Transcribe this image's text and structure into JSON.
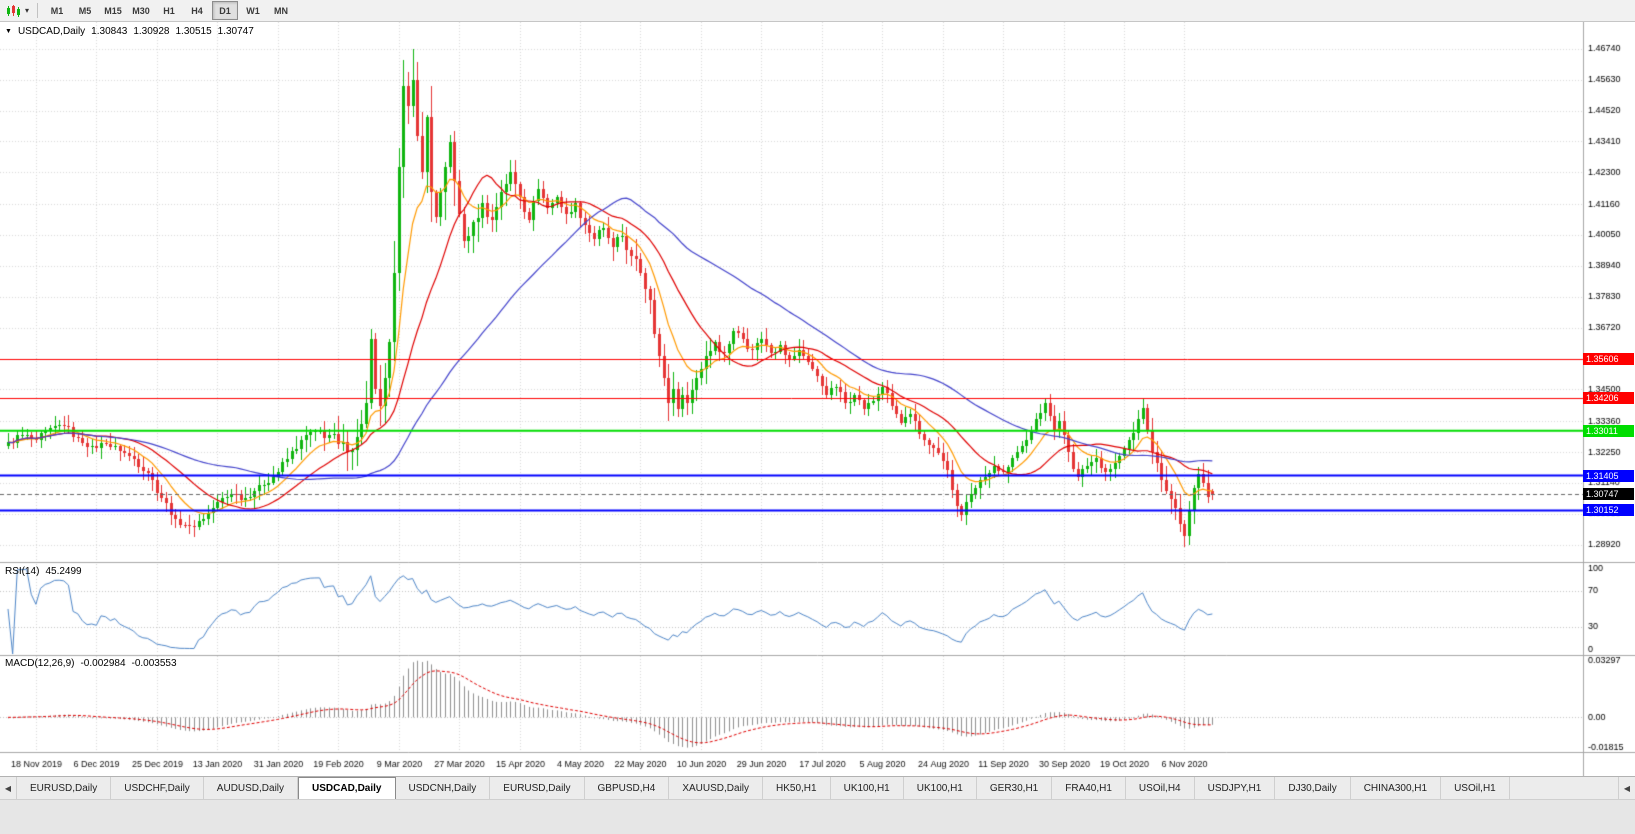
{
  "toolbar": {
    "timeframes": [
      "M1",
      "M5",
      "M15",
      "M30",
      "H1",
      "H4",
      "D1",
      "W1",
      "MN"
    ],
    "active_timeframe": "D1"
  },
  "icons": {
    "chart_type_dropdown": "▾",
    "symbol_marker": "▼",
    "tab_scroll_left": "◀",
    "tab_scroll_right": "◀"
  },
  "chart_header": {
    "symbol": "USDCAD,Daily",
    "open": "1.30843",
    "high": "1.30928",
    "low": "1.30515",
    "close": "1.30747"
  },
  "price_scale": {
    "ticks": [
      "1.46740",
      "1.45630",
      "1.44520",
      "1.43410",
      "1.42300",
      "1.41160",
      "1.40050",
      "1.38940",
      "1.37830",
      "1.36720",
      "1.35610",
      "1.34500",
      "1.33360",
      "1.32250",
      "1.31140",
      "1.30030",
      "1.28920"
    ]
  },
  "x_axis": {
    "dates": [
      "18 Nov 2019",
      "6 Dec 2019",
      "25 Dec 2019",
      "13 Jan 2020",
      "31 Jan 2020",
      "19 Feb 2020",
      "9 Mar 2020",
      "27 Mar 2020",
      "15 Apr 2020",
      "4 May 2020",
      "22 May 2020",
      "10 Jun 2020",
      "29 Jun 2020",
      "17 Jul 2020",
      "5 Aug 2020",
      "24 Aug 2020",
      "11 Sep 2020",
      "30 Sep 2020",
      "19 Oct 2020",
      "6 Nov 2020"
    ]
  },
  "rsi": {
    "name": "RSI(14)",
    "value": "45.2499",
    "levels": [
      "100",
      "70",
      "30",
      "0"
    ],
    "color": "#4e86c8"
  },
  "macd": {
    "name": "MACD(12,26,9)",
    "main_value": "-0.002984",
    "signal_value": "-0.003553",
    "scale": [
      "0.03297",
      "0.00",
      "-0.01815"
    ],
    "histogram_color": "#8f8f8f",
    "signal_color": "#e00000"
  },
  "tabs": {
    "items": [
      "EURUSD,Daily",
      "USDCHF,Daily",
      "AUDUSD,Daily",
      "USDCAD,Daily",
      "USDCNH,Daily",
      "EURUSD,Daily",
      "GBPUSD,H4",
      "XAUUSD,Daily",
      "HK50,H1",
      "UK100,H1",
      "UK100,H1",
      "GER30,H1",
      "FRA40,H1",
      "USOil,H4",
      "USDJPY,H1",
      "DJ30,Daily",
      "CHINA300,H1",
      "USOil,H1"
    ],
    "active_index": 3
  },
  "chart_data": {
    "type": "candlestick",
    "symbol": "USDCAD",
    "timeframe": "Daily",
    "bars_total": 260,
    "first_labeled_bar": 6,
    "bars_per_label": 13,
    "y_range": [
      1.283,
      1.477
    ],
    "candle_up_color": "#0fb50f",
    "candle_down_color": "#e53535",
    "close_anchors": [
      [
        0,
        1.326
      ],
      [
        3,
        1.3285
      ],
      [
        6,
        1.327
      ],
      [
        9,
        1.331
      ],
      [
        12,
        1.332
      ],
      [
        15,
        1.3275
      ],
      [
        18,
        1.3245
      ],
      [
        21,
        1.3255
      ],
      [
        24,
        1.323
      ],
      [
        27,
        1.32
      ],
      [
        30,
        1.315
      ],
      [
        33,
        1.306
      ],
      [
        36,
        1.2985
      ],
      [
        39,
        1.2958
      ],
      [
        42,
        1.2985
      ],
      [
        45,
        1.3045
      ],
      [
        48,
        1.3075
      ],
      [
        51,
        1.306
      ],
      [
        54,
        1.3105
      ],
      [
        57,
        1.3135
      ],
      [
        60,
        1.32
      ],
      [
        63,
        1.327
      ],
      [
        66,
        1.33
      ],
      [
        69,
        1.3285
      ],
      [
        71,
        1.3255
      ],
      [
        73,
        1.3225
      ],
      [
        75,
        1.328
      ],
      [
        77,
        1.34
      ],
      [
        78,
        1.363
      ],
      [
        79,
        1.345
      ],
      [
        80,
        1.339
      ],
      [
        81,
        1.349
      ],
      [
        82,
        1.362
      ],
      [
        83,
        1.387
      ],
      [
        84,
        1.425
      ],
      [
        85,
        1.454
      ],
      [
        86,
        1.447
      ],
      [
        87,
        1.456
      ],
      [
        88,
        1.436
      ],
      [
        89,
        1.423
      ],
      [
        90,
        1.443
      ],
      [
        91,
        1.416
      ],
      [
        92,
        1.407
      ],
      [
        93,
        1.416
      ],
      [
        94,
        1.425
      ],
      [
        95,
        1.434
      ],
      [
        96,
        1.42
      ],
      [
        97,
        1.408
      ],
      [
        98,
        1.3985
      ],
      [
        100,
        1.405
      ],
      [
        102,
        1.412
      ],
      [
        104,
        1.406
      ],
      [
        106,
        1.416
      ],
      [
        108,
        1.423
      ],
      [
        110,
        1.414
      ],
      [
        112,
        1.406
      ],
      [
        114,
        1.417
      ],
      [
        116,
        1.41
      ],
      [
        118,
        1.414
      ],
      [
        120,
        1.408
      ],
      [
        122,
        1.412
      ],
      [
        124,
        1.404
      ],
      [
        126,
        1.399
      ],
      [
        128,
        1.403
      ],
      [
        130,
        1.396
      ],
      [
        132,
        1.4
      ],
      [
        134,
        1.393
      ],
      [
        136,
        1.387
      ],
      [
        138,
        1.377
      ],
      [
        140,
        1.357
      ],
      [
        141,
        1.349
      ],
      [
        142,
        1.34
      ],
      [
        143,
        1.345
      ],
      [
        144,
        1.338
      ],
      [
        145,
        1.343
      ],
      [
        146,
        1.34
      ],
      [
        148,
        1.349
      ],
      [
        150,
        1.357
      ],
      [
        152,
        1.362
      ],
      [
        154,
        1.358
      ],
      [
        156,
        1.366
      ],
      [
        158,
        1.363
      ],
      [
        160,
        1.359
      ],
      [
        162,
        1.363
      ],
      [
        164,
        1.358
      ],
      [
        166,
        1.361
      ],
      [
        168,
        1.356
      ],
      [
        170,
        1.359
      ],
      [
        172,
        1.355
      ],
      [
        174,
        1.35
      ],
      [
        176,
        1.343
      ],
      [
        178,
        1.346
      ],
      [
        180,
        1.34
      ],
      [
        182,
        1.343
      ],
      [
        184,
        1.338
      ],
      [
        186,
        1.341
      ],
      [
        188,
        1.346
      ],
      [
        190,
        1.339
      ],
      [
        192,
        1.333
      ],
      [
        194,
        1.336
      ],
      [
        196,
        1.329
      ],
      [
        198,
        1.325
      ],
      [
        200,
        1.322
      ],
      [
        202,
        1.316
      ],
      [
        203,
        1.309
      ],
      [
        204,
        1.303
      ],
      [
        205,
        1.2998
      ],
      [
        206,
        1.3045
      ],
      [
        208,
        1.3095
      ],
      [
        210,
        1.3135
      ],
      [
        212,
        1.3175
      ],
      [
        214,
        1.3155
      ],
      [
        216,
        1.3205
      ],
      [
        218,
        1.3245
      ],
      [
        220,
        1.3305
      ],
      [
        222,
        1.3365
      ],
      [
        223,
        1.34
      ],
      [
        224,
        1.3355
      ],
      [
        225,
        1.3305
      ],
      [
        226,
        1.3335
      ],
      [
        227,
        1.3285
      ],
      [
        228,
        1.3225
      ],
      [
        229,
        1.3165
      ],
      [
        230,
        1.3135
      ],
      [
        232,
        1.3175
      ],
      [
        234,
        1.3205
      ],
      [
        236,
        1.3155
      ],
      [
        238,
        1.3185
      ],
      [
        240,
        1.3235
      ],
      [
        242,
        1.3295
      ],
      [
        243,
        1.3345
      ],
      [
        244,
        1.3385
      ],
      [
        245,
        1.3305
      ],
      [
        246,
        1.3225
      ],
      [
        247,
        1.3185
      ],
      [
        248,
        1.3125
      ],
      [
        249,
        1.3085
      ],
      [
        250,
        1.3055
      ],
      [
        251,
        1.3025
      ],
      [
        252,
        1.2965
      ],
      [
        253,
        1.2925
      ],
      [
        254,
        1.3015
      ],
      [
        255,
        1.3095
      ],
      [
        256,
        1.3145
      ],
      [
        257,
        1.3115
      ],
      [
        258,
        1.3065
      ],
      [
        259,
        1.30747
      ]
    ],
    "moving_averages": [
      {
        "type": "EMA",
        "period": 10,
        "color": "#ff9a00"
      },
      {
        "type": "SMA",
        "period": 20,
        "color": "#e00000"
      },
      {
        "type": "SMA",
        "period": 50,
        "color": "#4444cc"
      }
    ],
    "horizontal_lines": [
      {
        "label": "1.35606",
        "price": 1.35606,
        "color": "#ff0000",
        "width": 1
      },
      {
        "label": "1.34206",
        "price": 1.34206,
        "color": "#ff0000",
        "width": 1
      },
      {
        "label": "1.33011",
        "price": 1.33011,
        "color": "#00dd00",
        "width": 2
      },
      {
        "label": "1.31405",
        "price": 1.31405,
        "color": "#0000ff",
        "width": 2
      },
      {
        "label": "1.30152",
        "price": 1.30152,
        "color": "#0000ff",
        "width": 2
      }
    ],
    "current_price": {
      "label": "1.30747",
      "price": 1.30747,
      "tag_color": "#000000"
    }
  }
}
